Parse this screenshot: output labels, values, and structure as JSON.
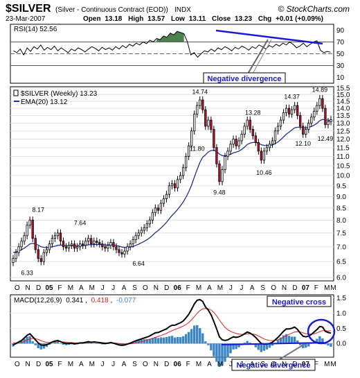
{
  "header": {
    "symbol": "$SILVER",
    "description": "(Silver - Continuous Contract (EOD))",
    "exchange": "INDX",
    "copyright": "© StockCharts.com",
    "date": "23-Mar-2007",
    "open_label": "Open",
    "open": "13.18",
    "high_label": "High",
    "high": "13.57",
    "low_label": "Low",
    "low": "13.11",
    "close_label": "Close",
    "close": "13.23",
    "chg_label": "Chg",
    "chg": "+0.01 (+0.09%)"
  },
  "colors": {
    "candle_up": "#ffffff",
    "candle_down": "#c8102e",
    "ema": "#1f2f8f",
    "rsi_fill": "#4f7f4f",
    "trendline": "#1a1ad6",
    "annotation": "#1a1ad6",
    "macd_line": "#000000",
    "signal_line": "#e02020",
    "histogram": "#3d86c6"
  },
  "months": [
    "O",
    "N",
    "D",
    "05",
    "F",
    "M",
    "A",
    "M",
    "J",
    "J",
    "A",
    "S",
    "O",
    "N",
    "D",
    "06",
    "F",
    "M",
    "A",
    "M",
    "J",
    "J",
    "A",
    "S",
    "O",
    "N",
    "D",
    "07",
    "F",
    "M"
  ],
  "chart_data": [
    {
      "type": "line",
      "title": "RSI(14) 52.56",
      "yticks": [
        10,
        30,
        50,
        70,
        90
      ],
      "ylim": [
        0,
        100
      ],
      "reference_lines": [
        70,
        50,
        30
      ],
      "y": [
        55,
        52,
        58,
        48,
        60,
        54,
        62,
        58,
        65,
        56,
        61,
        57,
        63,
        55,
        60,
        56,
        52,
        58,
        55,
        60,
        57,
        53,
        58,
        62,
        59,
        55,
        61,
        57,
        60,
        56,
        62,
        58,
        64,
        60,
        66,
        63,
        68,
        65,
        70,
        67,
        73,
        70,
        76,
        74,
        80,
        78,
        85,
        82,
        88,
        86,
        84,
        70,
        48,
        52,
        44,
        50,
        55,
        53,
        58,
        54,
        60,
        57,
        62,
        59,
        55,
        61,
        58,
        63,
        60,
        56,
        62,
        59,
        65,
        62,
        58,
        64,
        61,
        66,
        63,
        68,
        65,
        70,
        66,
        60,
        63,
        68,
        62,
        66,
        70,
        72,
        56,
        52,
        54,
        52.56
      ],
      "annotations": [
        "Negative divergence"
      ]
    },
    {
      "type": "candlestick",
      "title": "$SILVER (Weekly) 13.23",
      "legend": [
        "$SILVER (Weekly) 13.23",
        "EMA(20) 13.12"
      ],
      "yscale": "log",
      "yticks": [
        6.0,
        6.5,
        7.0,
        7.5,
        8.0,
        8.5,
        9.0,
        9.5,
        10.0,
        10.5,
        11.0,
        11.5,
        12.0,
        12.5,
        13.0,
        13.5,
        14.0,
        14.5,
        15.0,
        15.5
      ],
      "ylim": [
        5.9,
        15.6
      ],
      "close": [
        6.6,
        6.8,
        7.0,
        7.2,
        7.4,
        7.8,
        8.0,
        7.3,
        6.9,
        6.6,
        6.5,
        6.8,
        6.9,
        7.1,
        7.3,
        7.4,
        7.5,
        7.2,
        7.0,
        6.95,
        7.05,
        7.1,
        6.95,
        7.0,
        7.1,
        7.05,
        7.2,
        7.3,
        7.1,
        7.2,
        7.15,
        7.1,
        7.0,
        6.95,
        7.05,
        7.15,
        7.0,
        6.9,
        6.8,
        6.75,
        6.85,
        7.0,
        7.1,
        7.25,
        7.4,
        7.5,
        7.6,
        7.7,
        7.85,
        8.0,
        8.3,
        8.5,
        8.4,
        8.7,
        8.9,
        9.1,
        9.5,
        9.6,
        9.4,
        9.8,
        10.0,
        10.4,
        11.0,
        11.6,
        12.5,
        13.6,
        14.2,
        14.6,
        13.9,
        12.8,
        13.2,
        12.6,
        11.5,
        10.6,
        9.7,
        10.3,
        11.0,
        11.3,
        11.7,
        12.0,
        11.6,
        11.9,
        12.3,
        12.8,
        13.2,
        12.6,
        12.2,
        11.8,
        11.3,
        10.8,
        11.3,
        11.5,
        11.7,
        11.9,
        12.5,
        12.8,
        13.2,
        13.7,
        14.0,
        13.6,
        13.9,
        14.2,
        13.5,
        12.8,
        12.3,
        12.6,
        13.0,
        13.4,
        13.8,
        14.2,
        14.7,
        14.0,
        12.9,
        13.1,
        13.23
      ],
      "ema20": [
        6.8,
        6.82,
        6.85,
        6.9,
        6.95,
        7.02,
        7.1,
        7.12,
        7.1,
        7.06,
        7.0,
        6.98,
        6.97,
        6.98,
        7.0,
        7.02,
        7.05,
        7.06,
        7.05,
        7.04,
        7.04,
        7.04,
        7.03,
        7.03,
        7.04,
        7.04,
        7.05,
        7.07,
        7.07,
        7.08,
        7.08,
        7.08,
        7.07,
        7.06,
        7.06,
        7.07,
        7.06,
        7.04,
        7.02,
        6.99,
        6.98,
        6.98,
        6.99,
        7.01,
        7.05,
        7.09,
        7.14,
        7.19,
        7.25,
        7.32,
        7.41,
        7.51,
        7.59,
        7.69,
        7.79,
        7.91,
        8.05,
        8.19,
        8.3,
        8.44,
        8.59,
        8.76,
        8.97,
        9.22,
        9.53,
        9.92,
        10.3,
        10.68,
        10.96,
        11.09,
        11.25,
        11.33,
        11.35,
        11.28,
        11.13,
        11.05,
        11.04,
        11.06,
        11.12,
        11.2,
        11.24,
        11.3,
        11.4,
        11.53,
        11.68,
        11.76,
        11.8,
        11.8,
        11.76,
        11.67,
        11.63,
        11.62,
        11.63,
        11.65,
        11.73,
        11.83,
        11.97,
        12.13,
        12.3,
        12.42,
        12.56,
        12.7,
        12.73,
        12.74,
        12.7,
        12.69,
        12.72,
        12.78,
        12.87,
        12.99,
        13.16,
        13.24,
        13.21,
        13.2,
        13.12
      ],
      "labels": [
        {
          "text": "8.17",
          "value": 8.17
        },
        {
          "text": "6.33",
          "value": 6.33
        },
        {
          "text": "7.64",
          "value": 7.64
        },
        {
          "text": "6.64",
          "value": 6.64
        },
        {
          "text": "14.74",
          "value": 14.74
        },
        {
          "text": "11.80",
          "value": 11.8
        },
        {
          "text": "9.48",
          "value": 9.48
        },
        {
          "text": "13.28",
          "value": 13.28
        },
        {
          "text": "10.46",
          "value": 10.46
        },
        {
          "text": "14.37",
          "value": 14.37
        },
        {
          "text": "12.10",
          "value": 12.1
        },
        {
          "text": "14.89",
          "value": 14.89
        },
        {
          "text": "12.49",
          "value": 12.49
        }
      ]
    },
    {
      "type": "line",
      "title": "MACD(12,26,9)",
      "legend": [
        "0.341",
        "0.418",
        "-0.077"
      ],
      "yticks": [
        0.0,
        0.5,
        1.0,
        1.5
      ],
      "ylim": [
        -0.45,
        1.6
      ],
      "series": [
        {
          "values": [
            -0.05,
            0.0,
            0.05,
            0.1,
            0.18,
            0.27,
            0.32,
            0.22,
            0.12,
            0.02,
            -0.05,
            -0.06,
            -0.04,
            0.0,
            0.05,
            0.08,
            0.1,
            0.06,
            0.02,
            0.0,
            0.0,
            0.01,
            -0.01,
            0.0,
            0.02,
            0.02,
            0.04,
            0.06,
            0.04,
            0.05,
            0.04,
            0.03,
            0.01,
            0.0,
            0.01,
            0.03,
            0.01,
            -0.02,
            -0.05,
            -0.06,
            -0.05,
            -0.02,
            0.01,
            0.05,
            0.09,
            0.12,
            0.15,
            0.18,
            0.21,
            0.25,
            0.3,
            0.35,
            0.36,
            0.4,
            0.44,
            0.48,
            0.55,
            0.6,
            0.6,
            0.64,
            0.68,
            0.74,
            0.84,
            0.96,
            1.12,
            1.3,
            1.42,
            1.44,
            1.38,
            1.2,
            1.1,
            0.94,
            0.72,
            0.48,
            0.22,
            0.12,
            0.1,
            0.12,
            0.17,
            0.22,
            0.2,
            0.22,
            0.26,
            0.32,
            0.38,
            0.34,
            0.28,
            0.2,
            0.1,
            0.0,
            -0.02,
            -0.02,
            0.0,
            0.04,
            0.12,
            0.2,
            0.3,
            0.4,
            0.48,
            0.48,
            0.5,
            0.54,
            0.46,
            0.34,
            0.24,
            0.22,
            0.24,
            0.3,
            0.38,
            0.46,
            0.56,
            0.54,
            0.4,
            0.36,
            0.341
          ]
        },
        {
          "values": [
            0.02,
            0.02,
            0.03,
            0.04,
            0.07,
            0.11,
            0.15,
            0.17,
            0.16,
            0.13,
            0.09,
            0.06,
            0.04,
            0.03,
            0.04,
            0.05,
            0.06,
            0.06,
            0.05,
            0.04,
            0.03,
            0.03,
            0.02,
            0.02,
            0.02,
            0.02,
            0.02,
            0.03,
            0.03,
            0.04,
            0.04,
            0.04,
            0.03,
            0.02,
            0.02,
            0.02,
            0.02,
            0.01,
            0.0,
            -0.01,
            -0.02,
            -0.02,
            -0.01,
            0.0,
            0.02,
            0.04,
            0.06,
            0.08,
            0.11,
            0.14,
            0.17,
            0.2,
            0.23,
            0.26,
            0.3,
            0.33,
            0.38,
            0.42,
            0.46,
            0.49,
            0.53,
            0.57,
            0.62,
            0.69,
            0.78,
            0.88,
            0.99,
            1.08,
            1.14,
            1.15,
            1.14,
            1.1,
            1.02,
            0.91,
            0.77,
            0.64,
            0.53,
            0.45,
            0.4,
            0.36,
            0.33,
            0.31,
            0.3,
            0.3,
            0.32,
            0.32,
            0.31,
            0.29,
            0.25,
            0.2,
            0.15,
            0.12,
            0.1,
            0.09,
            0.1,
            0.12,
            0.16,
            0.21,
            0.26,
            0.3,
            0.34,
            0.38,
            0.39,
            0.38,
            0.35,
            0.32,
            0.31,
            0.31,
            0.32,
            0.35,
            0.39,
            0.42,
            0.42,
            0.41,
            0.418
          ]
        }
      ],
      "histogram": "MACD minus signal",
      "annotations": [
        "Negative cross",
        "Negative divergence"
      ]
    }
  ]
}
